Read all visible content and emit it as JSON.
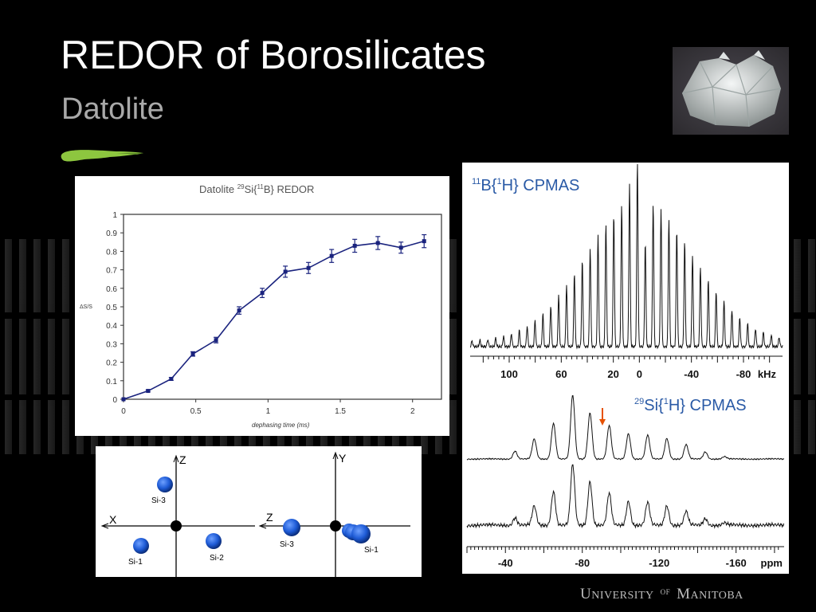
{
  "slide": {
    "title": "REDOR of Borosilicates",
    "subtitle": "Datolite",
    "accent_color": "#8dc63f"
  },
  "photo": {
    "description_icon": "crystal-photo"
  },
  "footer": {
    "u": "U",
    "niversity": "NIVERSITY",
    "of": "OF",
    "m": "M",
    "anitoba": "ANITOBA"
  },
  "chart_data": [
    {
      "type": "line",
      "title": "Datolite 29Si{11B} REDOR",
      "title_parts": {
        "pre": "Datolite ",
        "sup1": "29",
        "mid": "Si{",
        "sup2": "11",
        "post": "B} REDOR"
      },
      "xlabel": "dephasing time (ms)",
      "ylabel": "ΔS/S",
      "xlim": [
        0,
        2.2
      ],
      "ylim": [
        0,
        1
      ],
      "xticks": [
        0,
        0.5,
        1,
        1.5,
        2
      ],
      "xtick_labels": [
        "0",
        "0.5",
        "1",
        "1.5",
        "2"
      ],
      "yticks": [
        0,
        0.1,
        0.2,
        0.3,
        0.4,
        0.5,
        0.6,
        0.7,
        0.8,
        0.9,
        1
      ],
      "ytick_labels": [
        "0",
        "0.1",
        "0.2",
        "0.3",
        "0.4",
        "0.5",
        "0.6",
        "0.7",
        "0.8",
        "0.9",
        "1"
      ],
      "color": "#1a237e",
      "x": [
        0,
        0.17,
        0.33,
        0.48,
        0.64,
        0.8,
        0.96,
        1.12,
        1.28,
        1.44,
        1.6,
        1.76,
        1.92,
        2.08
      ],
      "y": [
        0,
        0.045,
        0.11,
        0.245,
        0.32,
        0.48,
        0.575,
        0.69,
        0.71,
        0.775,
        0.83,
        0.845,
        0.82,
        0.855
      ],
      "err": [
        0,
        0.005,
        0.008,
        0.012,
        0.015,
        0.02,
        0.025,
        0.03,
        0.03,
        0.035,
        0.035,
        0.035,
        0.03,
        0.035
      ]
    },
    {
      "type": "line",
      "title": "11B{1H} CPMAS",
      "title_parts": {
        "sup1": "11",
        "mid": "B{",
        "sup2": "1",
        "post": "H} CPMAS"
      },
      "xlabel": "kHz",
      "xlim": [
        130,
        -110
      ],
      "xticks": [
        100,
        60,
        20,
        0,
        -40,
        -80
      ],
      "xtick_labels": [
        "100",
        "60",
        "20",
        "0",
        "-40",
        "-80"
      ],
      "color": "#1a4ea0"
    },
    {
      "type": "line",
      "title": "29Si{1H} CPMAS",
      "title_parts": {
        "sup1": "29",
        "mid": "Si{",
        "sup2": "1",
        "post": "H} CPMAS"
      },
      "xlabel": "ppm",
      "xlim": [
        -20,
        -185
      ],
      "xticks": [
        -40,
        -80,
        -120,
        -160
      ],
      "xtick_labels": [
        "-40",
        "-80",
        "-120",
        "-160"
      ],
      "marker_color": "#e65100"
    }
  ],
  "axes_diagram": {
    "left": {
      "axis_v": "Z",
      "axis_h": "X",
      "atoms": [
        "Si-3",
        "Si-1",
        "Si-2"
      ]
    },
    "right": {
      "axis_v": "Y",
      "axis_h": "Z",
      "atoms": [
        "Si-3",
        "Si-1"
      ]
    },
    "atom_color": "#1e5bd6"
  }
}
